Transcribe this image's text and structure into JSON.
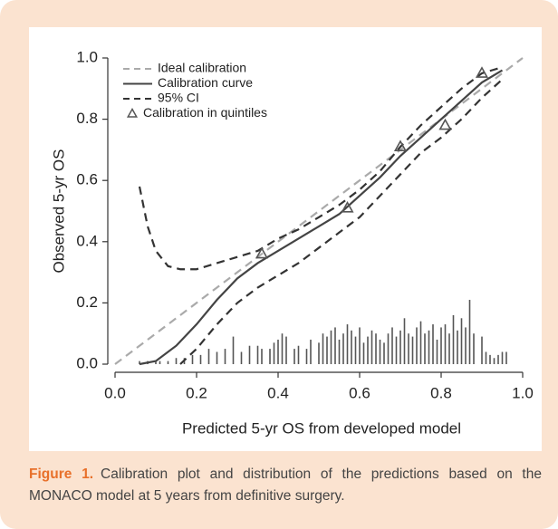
{
  "chart_data": {
    "type": "line",
    "ylabel": "Observed 5-yr OS",
    "xlabel": "Predicted 5-yr OS from developed model",
    "xlim": [
      0,
      1
    ],
    "ylim": [
      0,
      1
    ],
    "xticks": [
      {
        "value": 0,
        "label": "0.0"
      },
      0.2,
      0.4,
      0.6,
      0.8,
      {
        "value": 1,
        "label": "1.0"
      }
    ],
    "yticks": [
      {
        "value": 0,
        "label": "0.0"
      },
      0.2,
      0.4,
      0.6,
      0.8,
      {
        "value": 1,
        "label": "1.0"
      }
    ],
    "legend": "upper left",
    "series": [
      {
        "name": "Ideal calibration",
        "color": "#aaaaaa",
        "dash": "dashed",
        "x": [
          0,
          1
        ],
        "values": [
          0,
          1
        ]
      },
      {
        "name": "Calibration curve",
        "color": "#444444",
        "dash": "solid",
        "x": [
          0.06,
          0.1,
          0.15,
          0.2,
          0.25,
          0.3,
          0.35,
          0.4,
          0.45,
          0.5,
          0.55,
          0.6,
          0.65,
          0.7,
          0.75,
          0.8,
          0.85,
          0.9,
          0.95
        ],
        "values": [
          0.0,
          0.01,
          0.06,
          0.13,
          0.21,
          0.28,
          0.33,
          0.37,
          0.41,
          0.45,
          0.49,
          0.55,
          0.61,
          0.68,
          0.74,
          0.8,
          0.86,
          0.92,
          0.96
        ]
      },
      {
        "name": "95% CI",
        "color": "#333333",
        "dash": "dashed",
        "x": [
          0.06,
          0.08,
          0.1,
          0.13,
          0.16,
          0.2,
          0.25,
          0.3,
          0.35,
          0.4,
          0.45,
          0.5,
          0.55,
          0.6,
          0.65,
          0.7,
          0.75,
          0.8,
          0.85,
          0.9,
          0.95
        ],
        "values": [
          0.58,
          0.45,
          0.37,
          0.32,
          0.31,
          0.31,
          0.33,
          0.35,
          0.37,
          0.41,
          0.44,
          0.48,
          0.52,
          0.57,
          0.63,
          0.71,
          0.78,
          0.84,
          0.9,
          0.95,
          0.97
        ],
        "lower": [
          null,
          null,
          null,
          null,
          0.0,
          0.05,
          0.13,
          0.2,
          0.25,
          0.29,
          0.33,
          0.38,
          0.43,
          0.48,
          0.55,
          0.62,
          0.69,
          0.74,
          0.8,
          0.87,
          0.93
        ]
      },
      {
        "name": "Calibration in quintiles",
        "color": "#555555",
        "marker": "triangle",
        "x": [
          0.36,
          0.57,
          0.7,
          0.81,
          0.9
        ],
        "values": [
          0.36,
          0.51,
          0.71,
          0.78,
          0.95
        ]
      }
    ],
    "histogram": {
      "color": "#555555",
      "x": [
        0.06,
        0.08,
        0.1,
        0.11,
        0.13,
        0.15,
        0.17,
        0.19,
        0.21,
        0.23,
        0.25,
        0.27,
        0.29,
        0.31,
        0.33,
        0.35,
        0.36,
        0.38,
        0.39,
        0.4,
        0.41,
        0.42,
        0.44,
        0.45,
        0.47,
        0.48,
        0.5,
        0.51,
        0.52,
        0.53,
        0.54,
        0.55,
        0.56,
        0.57,
        0.58,
        0.59,
        0.6,
        0.61,
        0.62,
        0.63,
        0.64,
        0.65,
        0.66,
        0.67,
        0.68,
        0.69,
        0.7,
        0.71,
        0.72,
        0.73,
        0.74,
        0.75,
        0.76,
        0.77,
        0.78,
        0.79,
        0.8,
        0.81,
        0.82,
        0.83,
        0.84,
        0.85,
        0.86,
        0.87,
        0.88,
        0.9,
        0.91,
        0.92,
        0.93,
        0.94,
        0.95,
        0.96
      ],
      "values": [
        0.01,
        0.01,
        0.01,
        0.01,
        0.01,
        0.02,
        0.02,
        0.03,
        0.03,
        0.05,
        0.04,
        0.05,
        0.09,
        0.04,
        0.06,
        0.06,
        0.05,
        0.05,
        0.07,
        0.08,
        0.1,
        0.09,
        0.05,
        0.06,
        0.05,
        0.08,
        0.07,
        0.1,
        0.09,
        0.11,
        0.12,
        0.08,
        0.1,
        0.13,
        0.11,
        0.09,
        0.12,
        0.07,
        0.09,
        0.11,
        0.1,
        0.08,
        0.07,
        0.1,
        0.12,
        0.09,
        0.11,
        0.15,
        0.1,
        0.09,
        0.12,
        0.14,
        0.1,
        0.11,
        0.13,
        0.08,
        0.12,
        0.13,
        0.1,
        0.16,
        0.11,
        0.15,
        0.12,
        0.21,
        0.1,
        0.09,
        0.04,
        0.03,
        0.02,
        0.03,
        0.04,
        0.04
      ]
    }
  },
  "caption": {
    "label": "Figure 1.",
    "text": "Calibration plot and distribution of the predictions based on the MONACO model at 5 years from definitive surgery."
  }
}
